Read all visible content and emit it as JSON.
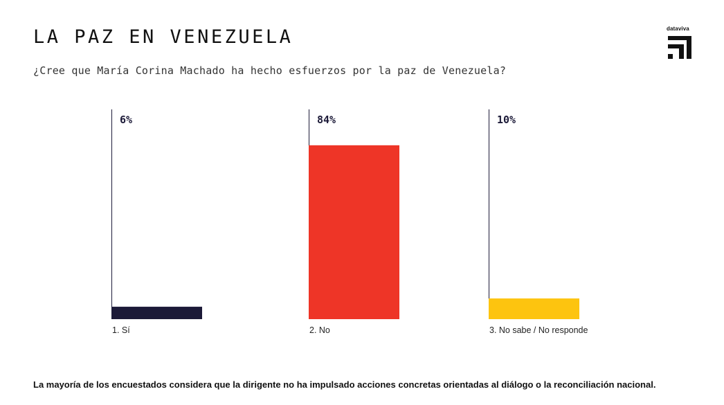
{
  "header": {
    "title": "LA PAZ EN VENEZUELA",
    "subtitle": "¿Cree que María Corina Machado ha hecho esfuerzos por la paz de Venezuela?"
  },
  "brand": {
    "name": "dataviva",
    "icon": "dataviva-logo-icon"
  },
  "chart_data": {
    "type": "bar",
    "categories": [
      "1. Sí",
      "2. No",
      "3. No sabe / No responde"
    ],
    "values": [
      6,
      84,
      10
    ],
    "data_labels": [
      "6%",
      "84%",
      "10%"
    ],
    "colors": [
      "#1c1a38",
      "#ee3527",
      "#fdc40f"
    ],
    "title": "",
    "xlabel": "",
    "ylabel": "",
    "unit": "%",
    "ylim": [
      0,
      100
    ],
    "grid": false,
    "legend": "none"
  },
  "footnote": "La mayoría de los encuestados considera que la dirigente no ha impulsado acciones concretas orientadas al diálogo o la reconciliación nacional."
}
